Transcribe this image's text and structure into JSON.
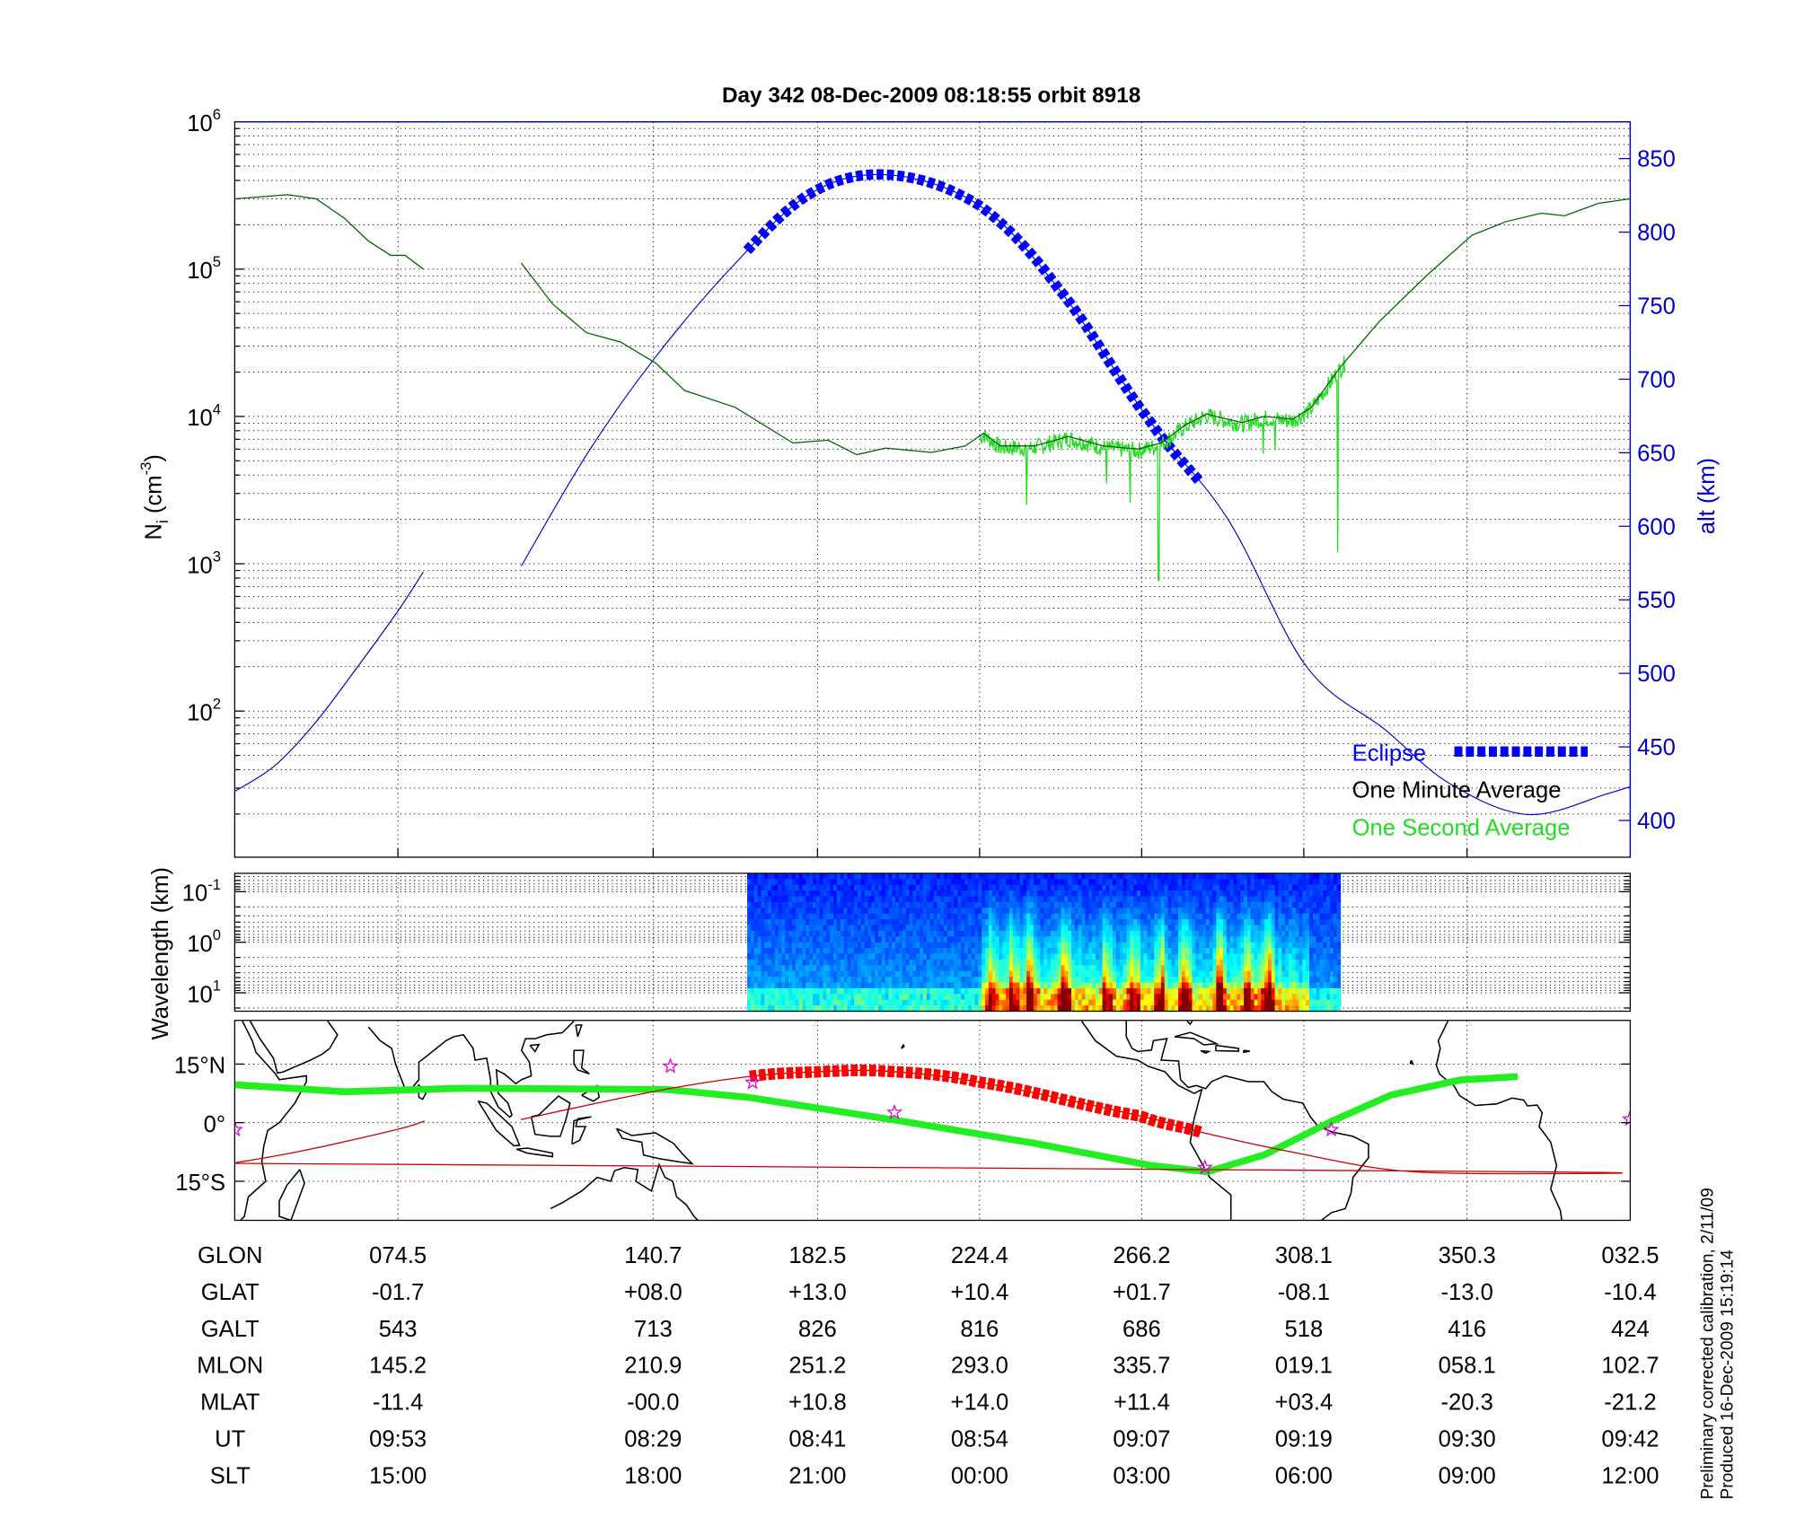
{
  "title": "Day 342  08-Dec-2009 08:18:55   orbit 8918",
  "side_notes": [
    "Preliminary corrected calibration, 2/11/09",
    "Produced 16-Dec-2009 15:19:14"
  ],
  "chart_data": [
    {
      "type": "line",
      "ylabel_left": {
        "main": "N",
        "sub": "i",
        "unit_open": " (cm",
        "sup": "-3",
        "unit_close": ")"
      },
      "ylabel_right": "alt (km)",
      "y_left_scale": "log",
      "y_left_range": [
        10,
        1000000
      ],
      "y_left_ticks": [
        {
          "base": "10",
          "exp": "6",
          "value": 1000000
        },
        {
          "base": "10",
          "exp": "5",
          "value": 100000
        },
        {
          "base": "10",
          "exp": "4",
          "value": 10000
        },
        {
          "base": "10",
          "exp": "3",
          "value": 1000
        },
        {
          "base": "10",
          "exp": "2",
          "value": 100
        }
      ],
      "y_right_range": [
        375,
        876
      ],
      "y_right_ticks": [
        "850",
        "800",
        "750",
        "700",
        "650",
        "600",
        "550",
        "500",
        "450",
        "400"
      ],
      "x_ticks_ut": [
        "08:29",
        "08:41",
        "08:54",
        "09:07",
        "09:19",
        "09:30"
      ],
      "x_range_ut": [
        "07:57:00",
        "09:43:48"
      ],
      "grid": true,
      "colors": {
        "altitude": "#0000cc",
        "eclipse": "#0000ff",
        "minute": "#006400",
        "second": "#22dd22"
      },
      "legend_position": "bottom-right",
      "legend": [
        {
          "label": "Eclipse",
          "color": "#0000ff"
        },
        {
          "label": "One Minute Average",
          "color": "#000000"
        },
        {
          "label": "One Second Average",
          "color": "#22dd22"
        }
      ],
      "altitude_km": [
        [
          [
            "07:57:00",
            420
          ],
          [
            "08:00:00",
            437
          ],
          [
            "08:03:00",
            465
          ],
          [
            "08:06:00",
            500
          ],
          [
            "08:09:30",
            543
          ],
          [
            "08:11:24",
            569
          ]
        ],
        [
          [
            "08:18:54",
            573
          ],
          [
            "08:24:00",
            650
          ],
          [
            "08:29:00",
            713
          ],
          [
            "08:35:00",
            776
          ],
          [
            "08:41:00",
            826
          ],
          [
            "08:47:00",
            839
          ],
          [
            "08:54:00",
            818
          ],
          [
            "09:00:00",
            762
          ],
          [
            "09:07:00",
            672
          ],
          [
            "09:13:00",
            605
          ],
          [
            "09:19:00",
            505
          ],
          [
            "09:25:00",
            462
          ],
          [
            "09:30:00",
            425
          ],
          [
            "09:36:00",
            404
          ],
          [
            "09:42:00",
            418
          ],
          [
            "09:43:48",
            423
          ]
        ]
      ],
      "eclipse_ut": [
        "08:36:12",
        "09:11:06"
      ],
      "one_minute_average": [
        [
          [
            "07:57:00",
            300000
          ],
          [
            "08:01:00",
            320000
          ],
          [
            "08:03:12",
            300000
          ],
          [
            "08:05:24",
            220000
          ],
          [
            "08:07:12",
            155000
          ],
          [
            "08:08:54",
            124000
          ],
          [
            "08:10:00",
            124000
          ],
          [
            "08:11:24",
            100000
          ]
        ],
        [
          [
            "08:18:54",
            110000
          ],
          [
            "08:21:18",
            58000
          ],
          [
            "08:23:54",
            37000
          ],
          [
            "08:26:30",
            32000
          ],
          [
            "08:29:12",
            23000
          ],
          [
            "08:31:24",
            15000
          ],
          [
            "08:35:18",
            11500
          ],
          [
            "08:39:42",
            6600
          ],
          [
            "08:42:24",
            6900
          ],
          [
            "08:44:36",
            5500
          ],
          [
            "08:46:48",
            6100
          ],
          [
            "08:50:18",
            5700
          ],
          [
            "08:52:54",
            6300
          ],
          [
            "08:54:18",
            7700
          ],
          [
            "08:55:36",
            6300
          ],
          [
            "08:58:12",
            6300
          ],
          [
            "09:00:48",
            7300
          ],
          [
            "09:03:30",
            6300
          ],
          [
            "09:06:06",
            6000
          ],
          [
            "09:07:54",
            6600
          ],
          [
            "09:09:42",
            8700
          ],
          [
            "09:11:24",
            10400
          ],
          [
            "09:12:18",
            9900
          ],
          [
            "09:14:06",
            9100
          ],
          [
            "09:15:48",
            10000
          ],
          [
            "09:18:00",
            9600
          ],
          [
            "09:19:24",
            11500
          ],
          [
            "09:21:36",
            21500
          ],
          [
            "09:24:36",
            44000
          ],
          [
            "09:28:12",
            90000
          ],
          [
            "09:31:42",
            170000
          ],
          [
            "09:34:18",
            210000
          ],
          [
            "09:37:00",
            240000
          ],
          [
            "09:38:48",
            230000
          ],
          [
            "09:41:24",
            280000
          ],
          [
            "09:43:48",
            300000
          ]
        ]
      ],
      "one_second_average_range_ut": [
        "08:54:00",
        "09:22:00"
      ],
      "one_second_dips": [
        [
          "08:57:36",
          2500
        ],
        [
          "09:03:42",
          3500
        ],
        [
          "09:05:30",
          2600
        ],
        [
          "09:07:42",
          770
        ],
        [
          "09:15:42",
          5600
        ],
        [
          "09:16:36",
          5900
        ],
        [
          "09:21:24",
          1200
        ]
      ]
    },
    {
      "type": "heatmap",
      "ylabel": "Wavelength (km)",
      "y_scale": "log",
      "y_ticks": [
        {
          "base": "10",
          "exp": "-1"
        },
        {
          "base": "10",
          "exp": "0"
        },
        {
          "base": "10",
          "exp": "1"
        }
      ],
      "coverage_ut": [
        "08:36:12",
        "09:21:36"
      ],
      "colormap": "jet",
      "active_interval_ut": [
        "08:54:00",
        "09:19:00"
      ]
    },
    {
      "type": "map",
      "lat_ticks": [
        "15°N",
        "0°",
        "15°S"
      ],
      "lat_range": [
        -25,
        26
      ],
      "lon_range_east": [
        32.5,
        392.5
      ],
      "colors": {
        "orbit_track": "#cc0000",
        "eclipse_track": "#ff0000",
        "magnetic_equator": "#22ee22",
        "markers": "#dd00dd",
        "coast": "#000000"
      },
      "orbit_track": [
        [
          [
            32.5,
            -10.3
          ],
          [
            50,
            -7.2
          ],
          [
            74.5,
            -1.7
          ],
          [
            81.5,
            0.4
          ]
        ],
        [
          [
            106.3,
            0.8
          ],
          [
            140.7,
            8.0
          ],
          [
            165,
            11.8
          ],
          [
            182.5,
            13.0
          ],
          [
            200,
            13.2
          ],
          [
            224.4,
            10.4
          ],
          [
            266.2,
            1.7
          ],
          [
            282,
            -2.5
          ],
          [
            308.1,
            -8.1
          ],
          [
            330,
            -12.0
          ],
          [
            350.3,
            -13.0
          ],
          [
            10,
            -12.6
          ],
          [
            32.5,
            -10.4
          ]
        ]
      ],
      "eclipse_lon": [
        165.4,
        282.2
      ],
      "magnetic_equator": [
        [
          32.5,
          9.7
        ],
        [
          61,
          7.9
        ],
        [
          90.6,
          8.8
        ],
        [
          144,
          8.5
        ],
        [
          164.8,
          6.5
        ],
        [
          203.3,
          0.6
        ],
        [
          238.9,
          -5.3
        ],
        [
          268.6,
          -10.9
        ],
        [
          283.4,
          -12.6
        ],
        [
          298.2,
          -8.2
        ],
        [
          316,
          0.6
        ],
        [
          330.8,
          7.1
        ],
        [
          348.6,
          10.9
        ],
        [
          3.5,
          11.8
        ],
        [
          32.5,
          9.7
        ]
      ],
      "markers": [
        [
          144.9,
          14.4
        ],
        [
          166.1,
          10.3
        ],
        [
          202.7,
          2.6
        ],
        [
          282.8,
          -11.5
        ],
        [
          315.4,
          -1.8
        ],
        [
          32.4,
          0.9
        ],
        [
          32.6,
          -1.8
        ]
      ]
    }
  ],
  "table": {
    "rows": [
      {
        "label": "GLON",
        "values": [
          "074.5",
          "140.7",
          "182.5",
          "224.4",
          "266.2",
          "308.1",
          "350.3",
          "032.5"
        ]
      },
      {
        "label": "GLAT",
        "values": [
          "-01.7",
          "+08.0",
          "+13.0",
          "+10.4",
          "+01.7",
          "-08.1",
          "-13.0",
          "-10.4"
        ]
      },
      {
        "label": "GALT",
        "values": [
          "543",
          "713",
          "826",
          "816",
          "686",
          "518",
          "416",
          "424"
        ]
      },
      {
        "label": "MLON",
        "values": [
          "145.2",
          "210.9",
          "251.2",
          "293.0",
          "335.7",
          "019.1",
          "058.1",
          "102.7"
        ]
      },
      {
        "label": "MLAT",
        "values": [
          "-11.4",
          "-00.0",
          "+10.8",
          "+14.0",
          "+11.4",
          "+03.4",
          "-20.3",
          "-21.2"
        ]
      },
      {
        "label": "UT",
        "values": [
          "09:53",
          "08:29",
          "08:41",
          "08:54",
          "09:07",
          "09:19",
          "09:30",
          "09:42"
        ]
      },
      {
        "label": "SLT",
        "values": [
          "15:00",
          "18:00",
          "21:00",
          "00:00",
          "03:00",
          "06:00",
          "09:00",
          "12:00"
        ]
      }
    ]
  }
}
